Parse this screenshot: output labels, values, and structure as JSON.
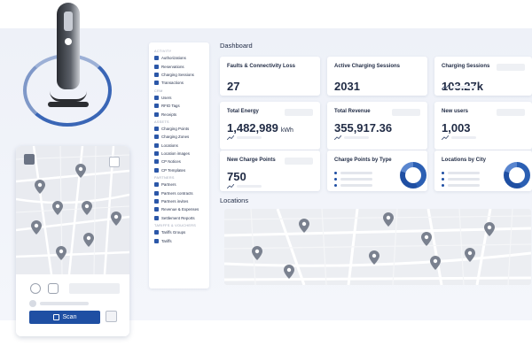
{
  "sidebar": {
    "sections": [
      {
        "title": "ACTIVITY",
        "items": [
          {
            "label": "Authorizations",
            "icon": "lock-icon"
          },
          {
            "label": "Reservations",
            "icon": "calendar-icon"
          },
          {
            "label": "Charging Sessions",
            "icon": "bolt-icon"
          },
          {
            "label": "Transactions",
            "icon": "list-icon"
          }
        ]
      },
      {
        "title": "CRM",
        "items": [
          {
            "label": "Users",
            "icon": "user-icon"
          },
          {
            "label": "RFID Tags",
            "icon": "tag-icon"
          },
          {
            "label": "Receipts",
            "icon": "receipt-icon"
          }
        ]
      },
      {
        "title": "ASSETS",
        "items": [
          {
            "label": "Charging Points",
            "icon": "plug-icon"
          },
          {
            "label": "Charging Zones",
            "icon": "zone-icon"
          },
          {
            "label": "Locations",
            "icon": "pin-icon"
          },
          {
            "label": "Location images",
            "icon": "image-icon"
          },
          {
            "label": "CP Notices",
            "icon": "bell-icon"
          },
          {
            "label": "CP Templates",
            "icon": "template-icon"
          }
        ]
      },
      {
        "title": "PARTNERS",
        "items": [
          {
            "label": "Partners",
            "icon": "handshake-icon"
          },
          {
            "label": "Partners contracts",
            "icon": "contract-icon"
          },
          {
            "label": "Partners invites",
            "icon": "invite-icon"
          },
          {
            "label": "Revenue & Expenses",
            "icon": "money-icon"
          },
          {
            "label": "Settlement Reports",
            "icon": "report-icon"
          }
        ]
      },
      {
        "title": "TARIFFS & VOUCHERS",
        "items": [
          {
            "label": "Tariffs Groups",
            "icon": "group-icon"
          },
          {
            "label": "Tariffs",
            "icon": "tariff-icon"
          }
        ]
      }
    ]
  },
  "dashboard": {
    "title": "Dashboard",
    "cards": [
      {
        "title": "Faults & Connectivity Loss",
        "value": "27",
        "unit": ""
      },
      {
        "title": "Active Charging Sessions",
        "value": "2031",
        "unit": ""
      },
      {
        "title": "Charging Sessions",
        "value": "103.27k",
        "unit": ""
      },
      {
        "title": "Total Energy",
        "value": "1,482,989",
        "unit": "kWh"
      },
      {
        "title": "Total Revenue",
        "value": "355,917.36",
        "unit": ""
      },
      {
        "title": "New users",
        "value": "1,003",
        "unit": ""
      },
      {
        "title": "New Charge Points",
        "value": "750",
        "unit": ""
      },
      {
        "title": "Charge Points by Type",
        "value": "",
        "unit": ""
      },
      {
        "title": "Locations by City",
        "value": "",
        "unit": ""
      }
    ]
  },
  "locations": {
    "title": "Locations"
  },
  "phone": {
    "scan_label": "Scan"
  },
  "colors": {
    "accent": "#1f4fa3",
    "background": "#eef1f8"
  }
}
